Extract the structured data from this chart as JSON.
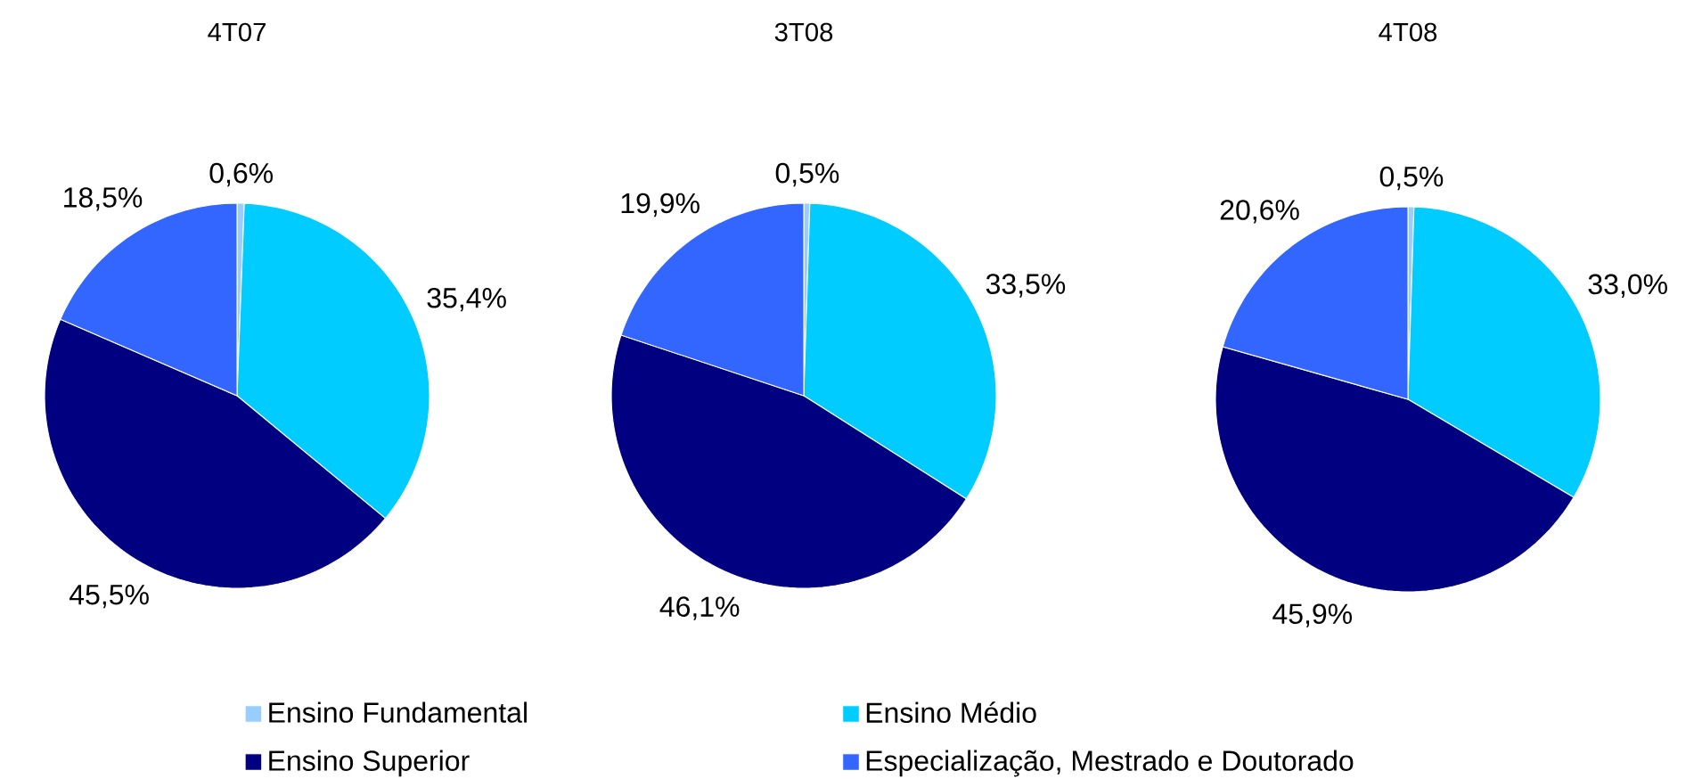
{
  "chart_data": [
    {
      "type": "pie",
      "title": "4T07",
      "categories": [
        "Ensino Fundamental",
        "Ensino Médio",
        "Ensino Superior",
        "Especialização, Mestrado e Doutorado"
      ],
      "values": [
        0.6,
        35.4,
        45.5,
        18.5
      ],
      "value_labels": [
        "0,6%",
        "35,4%",
        "45,5%",
        "18,5%"
      ],
      "colors": [
        "#99ccff",
        "#00ccff",
        "#000080",
        "#3366ff"
      ],
      "legend": "bottom"
    },
    {
      "type": "pie",
      "title": "3T08",
      "categories": [
        null,
        null,
        null,
        null
      ],
      "values": [
        0.5,
        33.5,
        46.1,
        19.9
      ],
      "value_labels": [
        "0,5%",
        "33,5%",
        "46,1%",
        "19,9%"
      ],
      "colors": [
        "#99ccff",
        "#00ccff",
        "#000080",
        "#3366ff"
      ]
    },
    {
      "type": "pie",
      "title": "4T08",
      "categories": [
        null,
        null,
        null,
        null
      ],
      "values": [
        0.5,
        33.0,
        45.9,
        20.6
      ],
      "value_labels": [
        "0,5%",
        "33,0%",
        "45,9%",
        "20,6%"
      ],
      "colors": [
        "#99ccff",
        "#00ccff",
        "#000080",
        "#3366ff"
      ]
    }
  ]
}
